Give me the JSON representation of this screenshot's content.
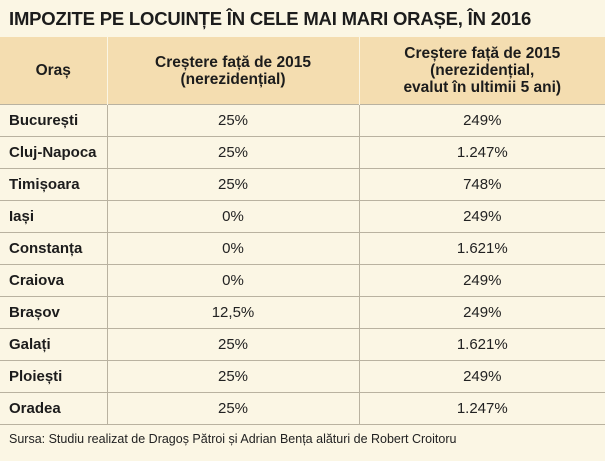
{
  "title": "IMPOZITE PE LOCUINȚE ÎN CELE MAI MARI ORAȘE, ÎN 2016",
  "headers": {
    "city": "Oraș",
    "col2_line1": "Creștere față de 2015",
    "col2_line2": "(nerezidențial)",
    "col3_line1": "Creștere față de 2015",
    "col3_line2": "(nerezidențial,",
    "col3_line3": "evalut în ultimii 5 ani)"
  },
  "rows": [
    {
      "city": "București",
      "growth": "25%",
      "growth_5y": "249%"
    },
    {
      "city": "Cluj-Napoca",
      "growth": "25%",
      "growth_5y": "1.247%"
    },
    {
      "city": "Timișoara",
      "growth": "25%",
      "growth_5y": "748%"
    },
    {
      "city": "Iași",
      "growth": "0%",
      "growth_5y": "249%"
    },
    {
      "city": "Constanța",
      "growth": "0%",
      "growth_5y": "1.621%"
    },
    {
      "city": "Craiova",
      "growth": "0%",
      "growth_5y": "249%"
    },
    {
      "city": "Brașov",
      "growth": "12,5%",
      "growth_5y": "249%"
    },
    {
      "city": "Galați",
      "growth": "25%",
      "growth_5y": "1.621%"
    },
    {
      "city": "Ploiești",
      "growth": "25%",
      "growth_5y": "249%"
    },
    {
      "city": "Oradea",
      "growth": "25%",
      "growth_5y": "1.247%"
    }
  ],
  "source": "Sursa: Studiu realizat de Dragoș Pătroi și Adrian Bența alături de Robert Croitoru",
  "colors": {
    "background": "#fbf6e4",
    "header_background": "#f4ddb0",
    "grid_lines": "#b9b2a0"
  }
}
